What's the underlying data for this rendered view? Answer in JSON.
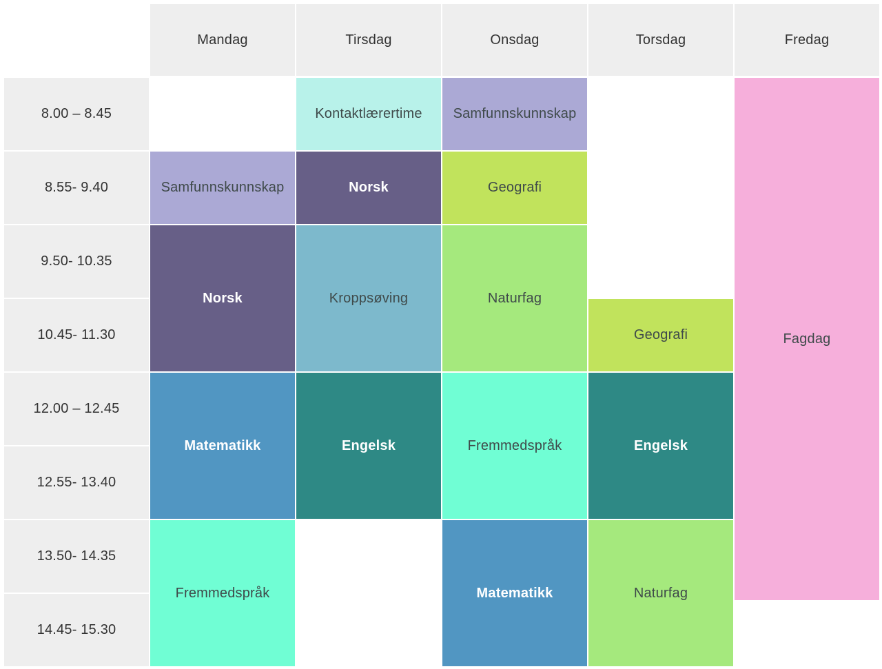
{
  "days": [
    "Mandag",
    "Tirsdag",
    "Onsdag",
    "Torsdag",
    "Fredag"
  ],
  "times": [
    "8.00 – 8.45",
    "8.55- 9.40",
    "9.50- 10.35",
    "10.45- 11.30",
    "12.00 – 12.45",
    "12.55- 13.40",
    "13.50- 14.35",
    "14.45- 15.30"
  ],
  "colors": {
    "header_bg": "#eeeeee",
    "kontakt": "#b8f2ea",
    "samfunn": "#aba9d5",
    "norsk": "#675f87",
    "geografi": "#c1e35c",
    "kropp": "#7db9cc",
    "naturfag": "#a5e97d",
    "matematikk": "#5196c2",
    "engelsk": "#2e8985",
    "fremmed": "#70fed4",
    "fagdag": "#f6afdb"
  },
  "lessons": [
    {
      "day": 1,
      "start": 0,
      "span": 1,
      "label": "Kontaktlærertime",
      "color": "kontakt",
      "text": "dark"
    },
    {
      "day": 2,
      "start": 0,
      "span": 1,
      "label": "Samfunnskunnskap",
      "color": "samfunn",
      "text": "dark"
    },
    {
      "day": 4,
      "start": 0,
      "span": 7.1,
      "label": "Fagdag",
      "color": "fagdag",
      "text": "dark"
    },
    {
      "day": 0,
      "start": 1,
      "span": 1,
      "label": "Samfunnskunnskap",
      "color": "samfunn",
      "text": "dark"
    },
    {
      "day": 1,
      "start": 1,
      "span": 1,
      "label": "Norsk",
      "color": "norsk",
      "text": "light"
    },
    {
      "day": 2,
      "start": 1,
      "span": 1,
      "label": "Geografi",
      "color": "geografi",
      "text": "dark"
    },
    {
      "day": 0,
      "start": 2,
      "span": 2,
      "label": "Norsk",
      "color": "norsk",
      "text": "light"
    },
    {
      "day": 1,
      "start": 2,
      "span": 2,
      "label": "Kroppsøving",
      "color": "kropp",
      "text": "dark"
    },
    {
      "day": 2,
      "start": 2,
      "span": 2,
      "label": "Naturfag",
      "color": "naturfag",
      "text": "dark"
    },
    {
      "day": 3,
      "start": 3,
      "span": 1,
      "label": "Geografi",
      "color": "geografi",
      "text": "dark"
    },
    {
      "day": 0,
      "start": 4,
      "span": 2,
      "label": "Matematikk",
      "color": "matematikk",
      "text": "light"
    },
    {
      "day": 1,
      "start": 4,
      "span": 2,
      "label": "Engelsk",
      "color": "engelsk",
      "text": "light"
    },
    {
      "day": 2,
      "start": 4,
      "span": 2,
      "label": "Fremmedspråk",
      "color": "fremmed",
      "text": "dark"
    },
    {
      "day": 3,
      "start": 4,
      "span": 2,
      "label": "Engelsk",
      "color": "engelsk",
      "text": "light"
    },
    {
      "day": 0,
      "start": 6,
      "span": 2,
      "label": "Fremmedspråk",
      "color": "fremmed",
      "text": "dark"
    },
    {
      "day": 2,
      "start": 6,
      "span": 2,
      "label": "Matematikk",
      "color": "matematikk",
      "text": "light"
    },
    {
      "day": 3,
      "start": 6,
      "span": 2,
      "label": "Naturfag",
      "color": "naturfag",
      "text": "dark"
    }
  ]
}
